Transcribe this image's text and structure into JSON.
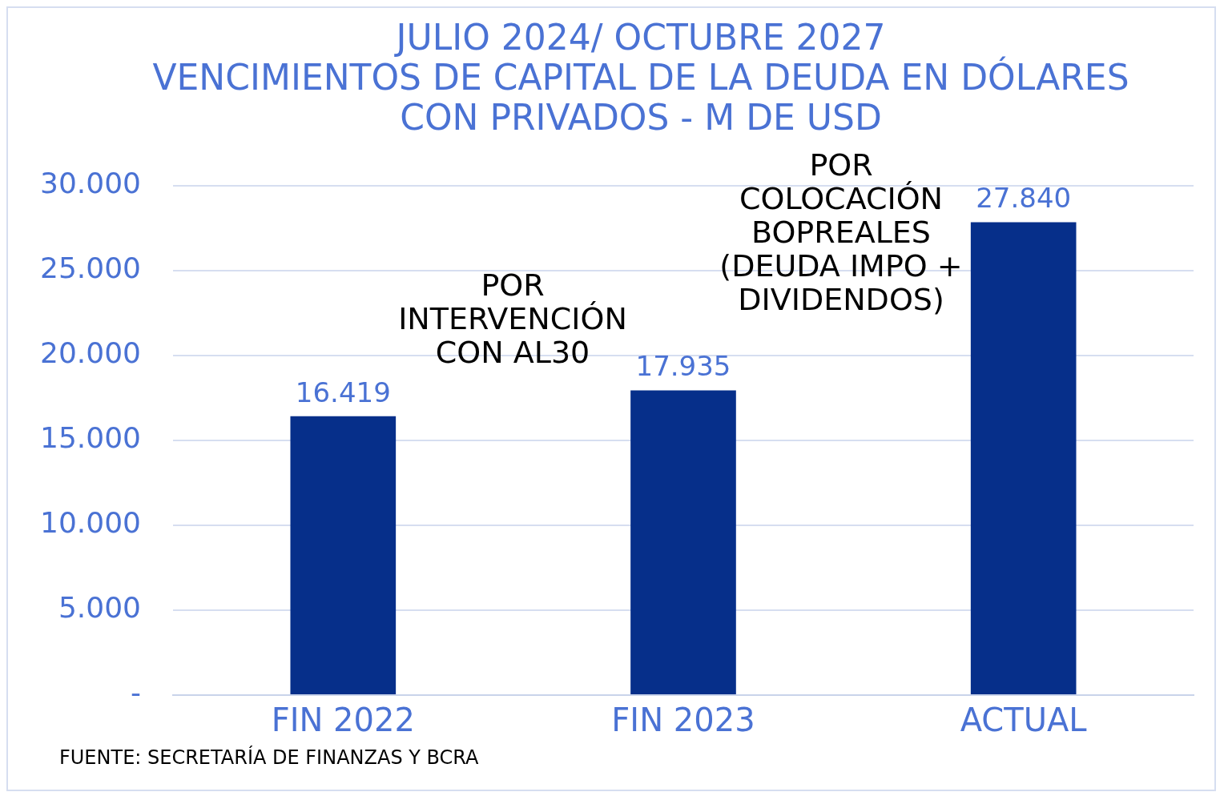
{
  "chart_data": {
    "type": "bar",
    "title": "JULIO 2024/ OCTUBRE 2027\nVENCIMIENTOS DE CAPITAL DE LA DEUDA EN DÓLARES CON PRIVADOS - M DE USD",
    "categories": [
      "FIN 2022",
      "FIN 2023",
      "ACTUAL"
    ],
    "values": [
      16419,
      17935,
      27840
    ],
    "value_labels": [
      "16.419",
      "17.935",
      "27.840"
    ],
    "color": "#062f8a",
    "ylim": [
      0,
      30000
    ],
    "yticks": [
      {
        "value": 0,
        "label": "-"
      },
      {
        "value": 5000,
        "label": "5.000"
      },
      {
        "value": 10000,
        "label": "10.000"
      },
      {
        "value": 15000,
        "label": "15.000"
      },
      {
        "value": 20000,
        "label": "20.000"
      },
      {
        "value": 25000,
        "label": "25.000"
      },
      {
        "value": 30000,
        "label": "30.000"
      }
    ],
    "grid": "y",
    "legend": false,
    "annotations": [
      "POR INTERVENCIÓN CON AL30",
      "POR COLOCACIÓN BOPREALES (DEUDA IMPO + DIVIDENDOS)",
      "FUENTE: SECRETARÍA DE FINANZAS Y BCRA"
    ]
  }
}
